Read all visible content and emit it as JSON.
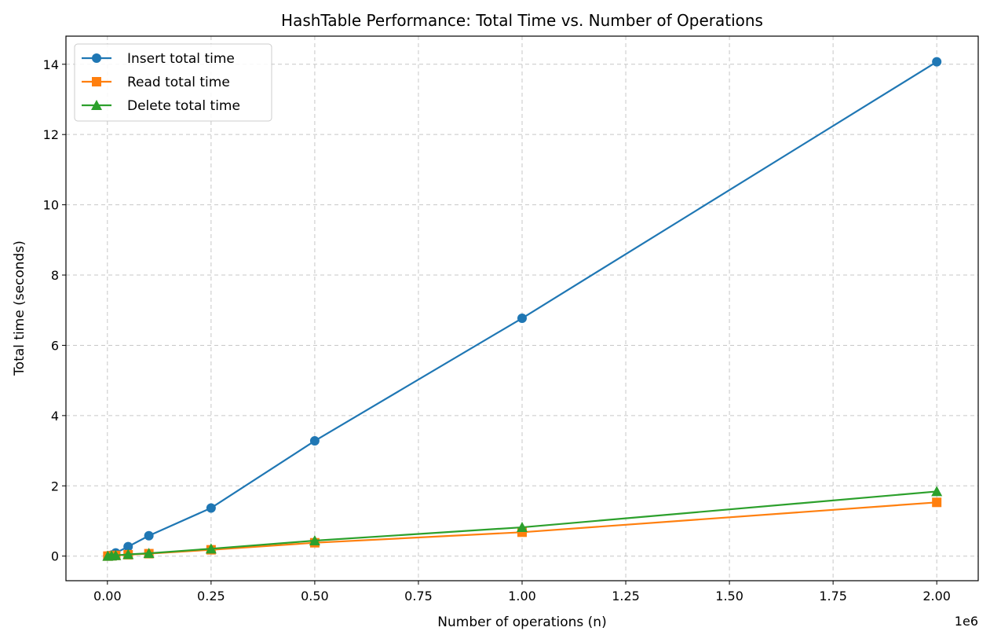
{
  "chart_data": {
    "type": "line",
    "title": "HashTable Performance: Total Time vs. Number of Operations",
    "xlabel": "Number of operations (n)",
    "ylabel": "Total time (seconds)",
    "x_offset_label": "1e6",
    "xlim": [
      -0.1,
      2.1
    ],
    "ylim": [
      -0.7,
      14.8
    ],
    "x_ticks": [
      0,
      0.25,
      0.5,
      0.75,
      1.0,
      1.25,
      1.5,
      1.75,
      2.0
    ],
    "x_tick_labels": [
      "0.00",
      "0.25",
      "0.50",
      "0.75",
      "1.00",
      "1.25",
      "1.50",
      "1.75",
      "2.00"
    ],
    "y_ticks": [
      0,
      2,
      4,
      6,
      8,
      10,
      12,
      14
    ],
    "y_tick_labels": [
      "0",
      "2",
      "4",
      "6",
      "8",
      "10",
      "12",
      "14"
    ],
    "grid": true,
    "legend_position": "top-left",
    "x": [
      0.001,
      0.01,
      0.02,
      0.05,
      0.1,
      0.25,
      0.5,
      1.0,
      2.0
    ],
    "series": [
      {
        "name": "Insert total time",
        "color": "#1f77b4",
        "marker": "circle",
        "values": [
          0.01,
          0.03,
          0.09,
          0.27,
          0.58,
          1.37,
          3.28,
          6.77,
          14.07
        ]
      },
      {
        "name": "Read total time",
        "color": "#ff7f0e",
        "marker": "square",
        "values": [
          0.001,
          0.01,
          0.02,
          0.04,
          0.07,
          0.18,
          0.38,
          0.68,
          1.53
        ]
      },
      {
        "name": "Delete total time",
        "color": "#2ca02c",
        "marker": "triangle",
        "values": [
          0.001,
          0.01,
          0.02,
          0.05,
          0.08,
          0.21,
          0.44,
          0.82,
          1.84
        ]
      }
    ]
  }
}
